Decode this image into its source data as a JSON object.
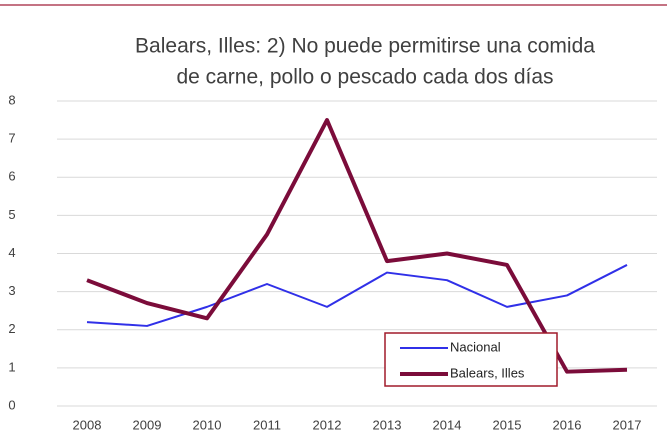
{
  "chart_data": {
    "type": "line",
    "title": [
      "Balears, Illes: 2) No puede permitirse una comida",
      "de carne, pollo o pescado cada dos días"
    ],
    "categories": [
      "2008",
      "2009",
      "2010",
      "2011",
      "2012",
      "2013",
      "2014",
      "2015",
      "2016",
      "2017"
    ],
    "series": [
      {
        "name": "Nacional",
        "color": "#3030e8",
        "values": [
          2.2,
          2.1,
          2.6,
          3.2,
          2.6,
          3.5,
          3.3,
          2.6,
          2.9,
          3.7
        ]
      },
      {
        "name": "Balears, Illes",
        "color": "#7b0c3a",
        "values": [
          3.3,
          2.7,
          2.3,
          4.5,
          7.5,
          3.8,
          4.0,
          3.7,
          0.9,
          0.95
        ]
      }
    ],
    "ylim": [
      0,
      8
    ],
    "yticks": [
      0,
      1,
      2,
      3,
      4,
      5,
      6,
      7,
      8
    ],
    "grid": true
  }
}
